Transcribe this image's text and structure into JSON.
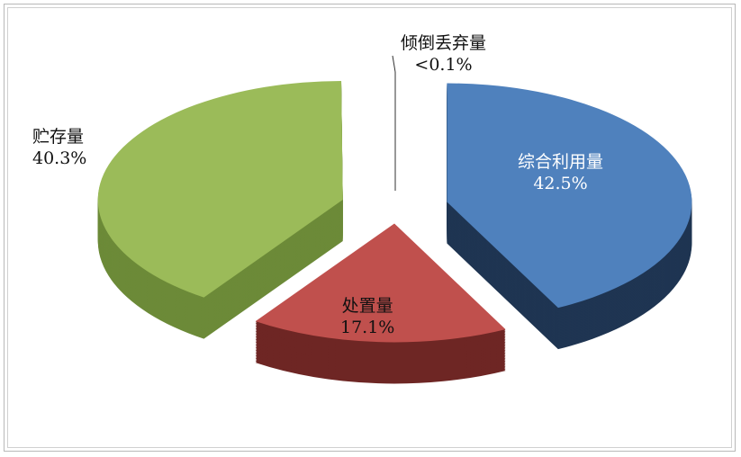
{
  "chart_data": {
    "type": "pie",
    "style": "3d-exploded",
    "title": "",
    "slices": [
      {
        "name": "综合利用量",
        "value": 42.5,
        "label": "42.5%",
        "color": "#4F81BD",
        "side_color": "#1F3552"
      },
      {
        "name": "处置量",
        "value": 17.1,
        "label": "17.1%",
        "color": "#C0504D",
        "side_color": "#6E2624"
      },
      {
        "name": "贮存量",
        "value": 40.3,
        "label": "40.3%",
        "color": "#9BBB59",
        "side_color": "#6C8A38"
      },
      {
        "name": "倾倒丢弃量",
        "value": 0.1,
        "label": "<0.1%",
        "color": "#8064A2",
        "side_color": "#4a3a60"
      }
    ],
    "legend": "none",
    "labels_inside": true
  }
}
